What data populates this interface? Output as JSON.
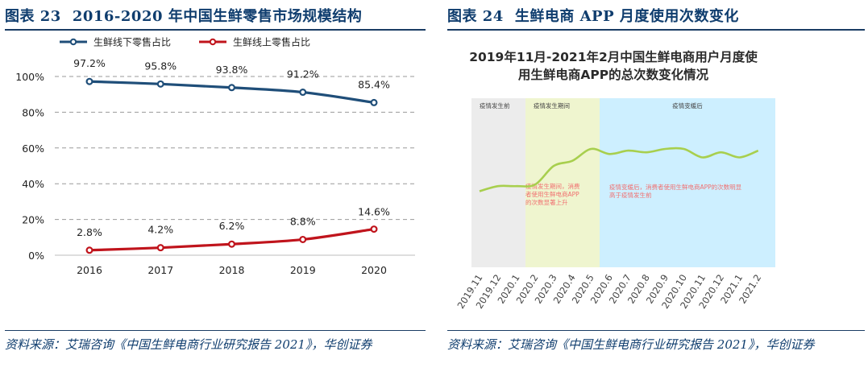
{
  "left": {
    "fig_label": "图表 23",
    "fig_title": "2016-2020 年中国生鲜零售市场规模结构",
    "source_text": "资料来源：艾瑞咨询《中国生鲜电商行业研究报告 2021》，华创证券"
  },
  "right": {
    "fig_label": "图表 24",
    "fig_title": "生鲜电商 APP 月度使用次数变化",
    "source_text": "资料来源：艾瑞咨询《中国生鲜电商行业研究报告 2021》，华创证券"
  },
  "chart_data": [
    {
      "type": "line",
      "title": "",
      "categories": [
        "2016",
        "2017",
        "2018",
        "2019",
        "2020"
      ],
      "series": [
        {
          "name": "生鲜线下零售占比",
          "color": "#1f4e79",
          "values": [
            97.2,
            95.8,
            93.8,
            91.2,
            85.4
          ],
          "labels": [
            "97.2%",
            "95.8%",
            "93.8%",
            "91.2%",
            "85.4%"
          ]
        },
        {
          "name": "生鲜线上零售占比",
          "color": "#c0141c",
          "values": [
            2.8,
            4.2,
            6.2,
            8.8,
            14.6
          ],
          "labels": [
            "2.8%",
            "4.2%",
            "6.2%",
            "8.8%",
            "14.6%"
          ]
        }
      ],
      "yticks": [
        "0%",
        "20%",
        "40%",
        "60%",
        "80%",
        "100%"
      ],
      "ylim": [
        0,
        100
      ],
      "grid": true,
      "legend": "top-left"
    },
    {
      "type": "line",
      "title": "2019年11月-2021年2月中国生鲜电商用户月度使用生鲜电商APP的总次数变化情况",
      "title_lines": [
        "2019年11月-2021年2月中国生鲜电商用户月度使",
        "用生鲜电商APP的总次数变化情况"
      ],
      "categories": [
        "2019.11",
        "2019.12",
        "2020.1",
        "2020.2",
        "2020.3",
        "2020.4",
        "2020.5",
        "2020.6",
        "2020.7",
        "2020.8",
        "2020.9",
        "2020.10",
        "2020.11",
        "2020.12",
        "2021.1",
        "2021.2"
      ],
      "series": [
        {
          "color": "#a8cf4e",
          "values": [
            45,
            48,
            48,
            49,
            60,
            63,
            70,
            67,
            69,
            68,
            70,
            70,
            65,
            68,
            65,
            69
          ]
        }
      ],
      "y_axis_shown": false,
      "ylim": [
        0,
        100
      ],
      "regions": [
        {
          "label": "疫情发生前",
          "from": "2019.11",
          "to": "2020.1",
          "color": "#ececec"
        },
        {
          "label": "疫情发生期间",
          "from": "2020.2",
          "to": "2020.5",
          "color": "#eff5cf"
        },
        {
          "label": "疫情变缓后",
          "from": "2020.5",
          "to": "2021.2",
          "color": "#cdefff"
        }
      ],
      "annotations": [
        {
          "lines": [
            "疫情发生期间，消费",
            "者使用生鲜电商APP",
            "的次数显著上升"
          ],
          "color": "#f07070"
        },
        {
          "lines": [
            "疫情变缓后，消费者使用生鲜电商APP的次数明显",
            "高于疫情发生前"
          ],
          "color": "#f07070"
        }
      ]
    }
  ]
}
